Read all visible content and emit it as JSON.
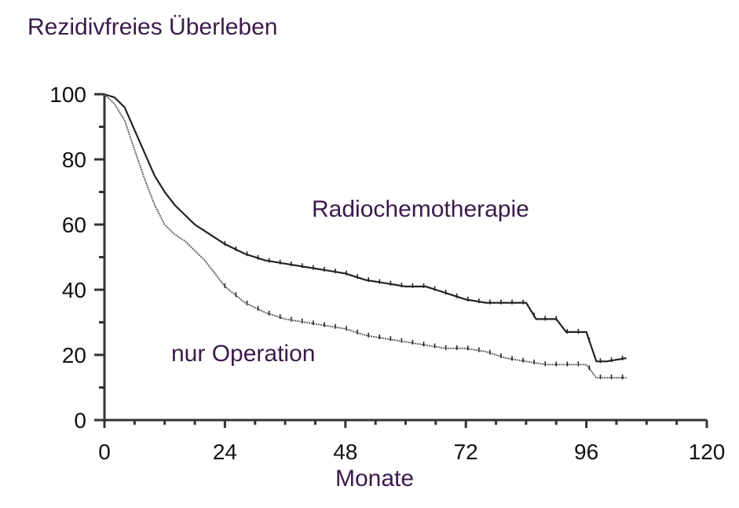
{
  "chart_data": {
    "type": "line",
    "title": "Rezidivfreies Überleben",
    "xlabel": "Monate",
    "ylabel": "",
    "xlim": [
      0,
      120
    ],
    "ylim": [
      0,
      100
    ],
    "x_ticks": [
      "0",
      "24",
      "48",
      "72",
      "96",
      "120"
    ],
    "y_ticks": [
      "0",
      "20",
      "40",
      "60",
      "80",
      "100"
    ],
    "series": [
      {
        "name": "Radiochemotherapie",
        "color": "#222222",
        "x": [
          0,
          2,
          4,
          6,
          8,
          10,
          12,
          14,
          16,
          18,
          20,
          24,
          28,
          32,
          36,
          40,
          44,
          48,
          52,
          56,
          60,
          64,
          66,
          70,
          72,
          76,
          80,
          84,
          86,
          90,
          92,
          96,
          98,
          100,
          104
        ],
        "y": [
          100,
          99,
          96,
          89,
          82,
          75,
          70,
          66,
          63,
          60,
          58,
          54,
          51,
          49,
          48,
          47,
          46,
          45,
          43,
          42,
          41,
          41,
          40,
          38,
          37,
          36,
          36,
          36,
          31,
          31,
          27,
          27,
          18,
          18,
          19
        ]
      },
      {
        "name": "nur Operation",
        "color": "#555555",
        "x": [
          0,
          2,
          4,
          6,
          8,
          10,
          12,
          14,
          16,
          20,
          24,
          28,
          32,
          36,
          40,
          44,
          48,
          52,
          56,
          60,
          64,
          68,
          72,
          76,
          80,
          84,
          88,
          92,
          96,
          98,
          100,
          104
        ],
        "y": [
          100,
          97,
          92,
          83,
          74,
          66,
          60,
          57,
          55,
          49,
          41,
          36,
          33,
          31,
          30,
          29,
          28,
          26,
          25,
          24,
          23,
          22,
          22,
          21,
          19,
          18,
          17,
          17,
          17,
          13,
          13,
          13
        ]
      }
    ],
    "annotations": [
      "Radiochemotherapie",
      "nur Operation"
    ],
    "grid": false,
    "legend": "none"
  }
}
